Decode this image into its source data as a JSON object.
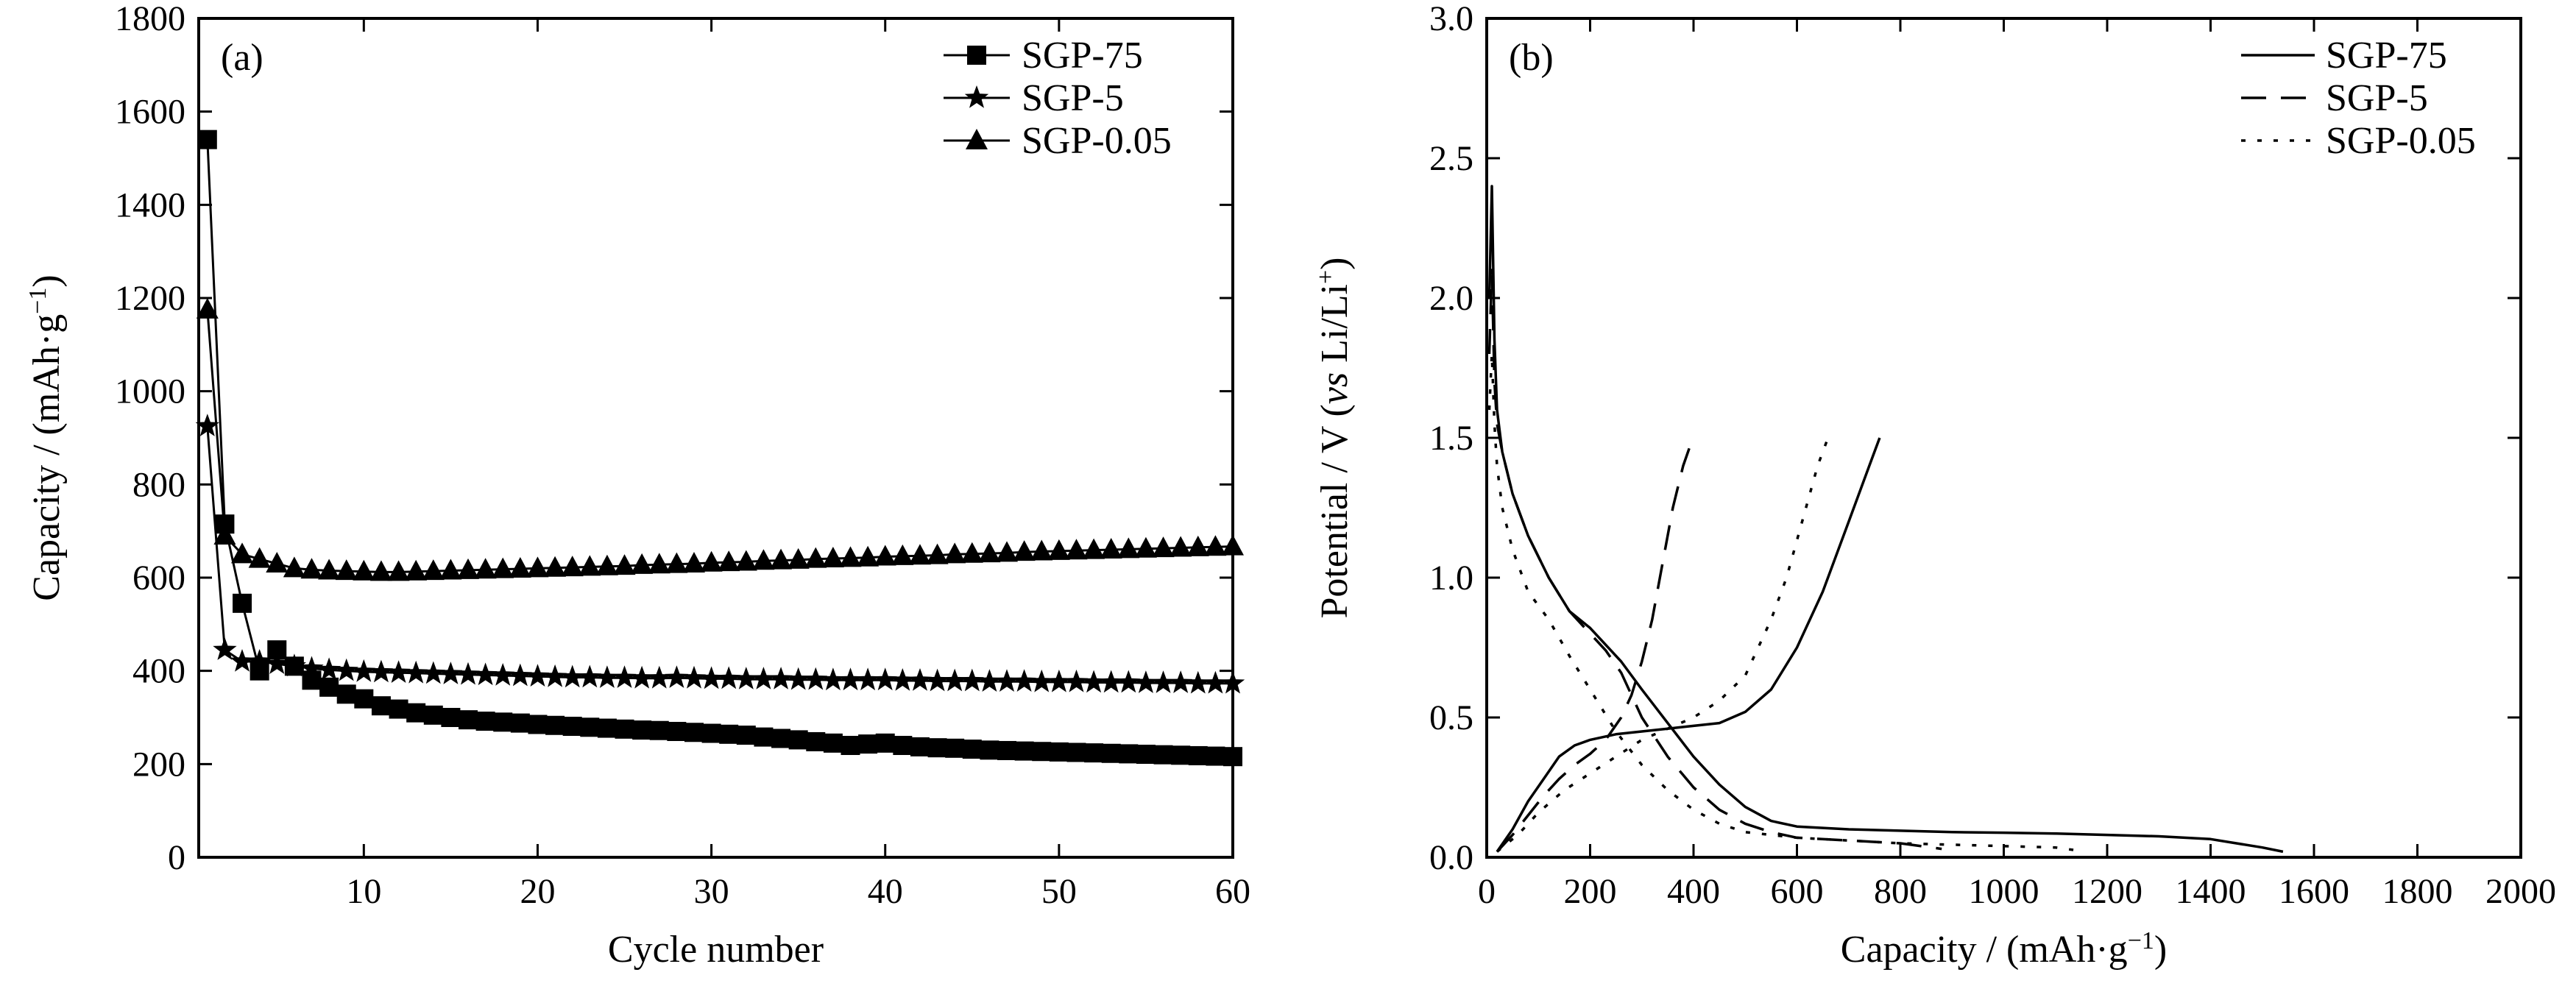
{
  "chart_data": [
    {
      "type": "line",
      "panel_label": "(a)",
      "xlabel": "Cycle  number",
      "ylabel": "Capacity / (mAh·g",
      "ylabel_sup": "−1",
      "ylabel_close": ")",
      "xlim": [
        0.5,
        60
      ],
      "ylim": [
        0,
        1800
      ],
      "xticks": [
        10,
        20,
        30,
        40,
        50,
        60
      ],
      "yticks": [
        0,
        200,
        400,
        600,
        800,
        1000,
        1200,
        1400,
        1600,
        1800
      ],
      "legend_position": "top-right",
      "series": [
        {
          "name": "SGP-75",
          "marker": "square",
          "x": [
            1,
            2,
            3,
            4,
            5,
            6,
            7,
            8,
            9,
            10,
            11,
            12,
            13,
            14,
            15,
            16,
            17,
            18,
            19,
            20,
            21,
            22,
            23,
            24,
            25,
            26,
            27,
            28,
            29,
            30,
            31,
            32,
            33,
            34,
            35,
            36,
            37,
            38,
            39,
            40,
            41,
            42,
            43,
            44,
            45,
            46,
            47,
            48,
            49,
            50,
            51,
            52,
            53,
            54,
            55,
            56,
            57,
            58,
            59,
            60
          ],
          "y": [
            1540,
            715,
            545,
            400,
            445,
            410,
            380,
            365,
            350,
            340,
            325,
            318,
            310,
            305,
            300,
            295,
            292,
            290,
            288,
            285,
            283,
            281,
            279,
            277,
            275,
            273,
            272,
            270,
            268,
            266,
            264,
            262,
            258,
            255,
            252,
            248,
            245,
            240,
            243,
            245,
            240,
            237,
            235,
            234,
            232,
            230,
            229,
            228,
            227,
            226,
            225,
            224,
            223,
            222,
            221,
            220,
            219,
            218,
            217,
            216
          ]
        },
        {
          "name": "SGP-5",
          "marker": "star",
          "x": [
            1,
            2,
            3,
            4,
            5,
            6,
            7,
            8,
            9,
            10,
            11,
            12,
            13,
            14,
            15,
            16,
            17,
            18,
            19,
            20,
            21,
            22,
            23,
            24,
            25,
            26,
            27,
            28,
            29,
            30,
            31,
            32,
            33,
            34,
            35,
            36,
            37,
            38,
            39,
            40,
            41,
            42,
            43,
            44,
            45,
            46,
            47,
            48,
            49,
            50,
            51,
            52,
            53,
            54,
            55,
            56,
            57,
            58,
            59,
            60
          ],
          "y": [
            925,
            445,
            420,
            420,
            415,
            410,
            405,
            402,
            400,
            398,
            397,
            396,
            395,
            394,
            393,
            392,
            391,
            390,
            389,
            388,
            387,
            386,
            386,
            385,
            385,
            384,
            384,
            385,
            384,
            383,
            383,
            382,
            382,
            382,
            381,
            381,
            380,
            380,
            380,
            380,
            379,
            379,
            378,
            378,
            378,
            377,
            377,
            377,
            376,
            376,
            376,
            375,
            375,
            375,
            374,
            374,
            374,
            373,
            373,
            373
          ]
        },
        {
          "name": "SGP-0.05",
          "marker": "triangle",
          "x": [
            1,
            2,
            3,
            4,
            5,
            6,
            7,
            8,
            9,
            10,
            11,
            12,
            13,
            14,
            15,
            16,
            17,
            18,
            19,
            20,
            21,
            22,
            23,
            24,
            25,
            26,
            27,
            28,
            29,
            30,
            31,
            32,
            33,
            34,
            35,
            36,
            37,
            38,
            39,
            40,
            41,
            42,
            43,
            44,
            45,
            46,
            47,
            48,
            49,
            50,
            51,
            52,
            53,
            54,
            55,
            56,
            57,
            58,
            59,
            60
          ],
          "y": [
            1175,
            690,
            650,
            640,
            630,
            620,
            617,
            615,
            614,
            613,
            612,
            612,
            613,
            614,
            615,
            616,
            617,
            618,
            619,
            620,
            621,
            622,
            623,
            624,
            625,
            627,
            628,
            629,
            630,
            632,
            633,
            634,
            636,
            637,
            638,
            640,
            641,
            642,
            643,
            645,
            646,
            647,
            648,
            650,
            651,
            652,
            653,
            655,
            656,
            657,
            658,
            659,
            660,
            661,
            662,
            663,
            664,
            665,
            666,
            667
          ]
        }
      ]
    },
    {
      "type": "line",
      "panel_label": "(b)",
      "xlabel": "Capacity / (mAh·g",
      "xlabel_sup": "−1",
      "xlabel_close": ")",
      "ylabel": "Potential / V (",
      "ylabel_italic": "vs",
      "ylabel_rest": " Li/Li",
      "ylabel_sup": "+",
      "ylabel_close": ")",
      "xlim": [
        0,
        2000
      ],
      "ylim": [
        0,
        3.0
      ],
      "xticks": [
        0,
        200,
        400,
        600,
        800,
        1000,
        1200,
        1400,
        1600,
        1800,
        2000
      ],
      "yticks": [
        0.0,
        0.5,
        1.0,
        1.5,
        2.0,
        2.5,
        3.0
      ],
      "legend_position": "top-right",
      "series": [
        {
          "name": "SGP-75",
          "line_style": "solid",
          "discharge": {
            "x": [
              5,
              10,
              15,
              20,
              30,
              50,
              80,
              120,
              160,
              200,
              230,
              260,
              300,
              350,
              400,
              450,
              500,
              550,
              600,
              700,
              800,
              900,
              1000,
              1100,
              1200,
              1300,
              1400,
              1450,
              1500,
              1540
            ],
            "y": [
              2.0,
              2.4,
              1.85,
              1.6,
              1.45,
              1.3,
              1.15,
              1.0,
              0.88,
              0.82,
              0.76,
              0.7,
              0.6,
              0.48,
              0.36,
              0.26,
              0.18,
              0.13,
              0.11,
              0.1,
              0.095,
              0.09,
              0.088,
              0.085,
              0.08,
              0.075,
              0.065,
              0.05,
              0.035,
              0.02
            ]
          },
          "charge": {
            "x": [
              20,
              50,
              80,
              110,
              140,
              170,
              200,
              250,
              300,
              350,
              400,
              450,
              500,
              550,
              600,
              650,
              700,
              740,
              760
            ],
            "y": [
              0.02,
              0.1,
              0.2,
              0.28,
              0.36,
              0.4,
              0.42,
              0.44,
              0.45,
              0.46,
              0.47,
              0.48,
              0.52,
              0.6,
              0.75,
              0.95,
              1.2,
              1.4,
              1.5
            ]
          }
        },
        {
          "name": "SGP-5",
          "line_style": "dashed",
          "discharge": {
            "x": [
              5,
              10,
              15,
              20,
              30,
              50,
              80,
              120,
              160,
              200,
              230,
              260,
              300,
              350,
              400,
              450,
              500,
              550,
              600,
              700,
              800,
              880
            ],
            "y": [
              1.8,
              2.1,
              1.7,
              1.55,
              1.45,
              1.3,
              1.15,
              1.0,
              0.88,
              0.8,
              0.74,
              0.66,
              0.5,
              0.36,
              0.25,
              0.17,
              0.12,
              0.09,
              0.07,
              0.06,
              0.05,
              0.03
            ]
          },
          "charge": {
            "x": [
              20,
              50,
              80,
              110,
              140,
              170,
              200,
              230,
              260,
              280,
              300,
              320,
              340,
              360,
              380,
              395
            ],
            "y": [
              0.02,
              0.08,
              0.15,
              0.22,
              0.28,
              0.33,
              0.37,
              0.42,
              0.5,
              0.58,
              0.7,
              0.85,
              1.05,
              1.25,
              1.4,
              1.48
            ]
          }
        },
        {
          "name": "SGP-0.05",
          "line_style": "dotted",
          "discharge": {
            "x": [
              5,
              10,
              15,
              20,
              30,
              50,
              80,
              120,
              160,
              200,
              250,
              300,
              350,
              400,
              450,
              500,
              600,
              700,
              800,
              900,
              1000,
              1100,
              1140
            ],
            "y": [
              1.6,
              1.8,
              1.55,
              1.4,
              1.25,
              1.1,
              0.95,
              0.85,
              0.72,
              0.6,
              0.45,
              0.33,
              0.24,
              0.17,
              0.12,
              0.09,
              0.07,
              0.06,
              0.05,
              0.045,
              0.04,
              0.035,
              0.025
            ]
          },
          "charge": {
            "x": [
              20,
              60,
              100,
              150,
              200,
              250,
              300,
              350,
              400,
              450,
              500,
              550,
              580,
              610,
              640,
              660
            ],
            "y": [
              0.02,
              0.08,
              0.16,
              0.24,
              0.3,
              0.36,
              0.42,
              0.46,
              0.5,
              0.56,
              0.65,
              0.85,
              1.0,
              1.2,
              1.4,
              1.5
            ]
          }
        }
      ]
    }
  ]
}
